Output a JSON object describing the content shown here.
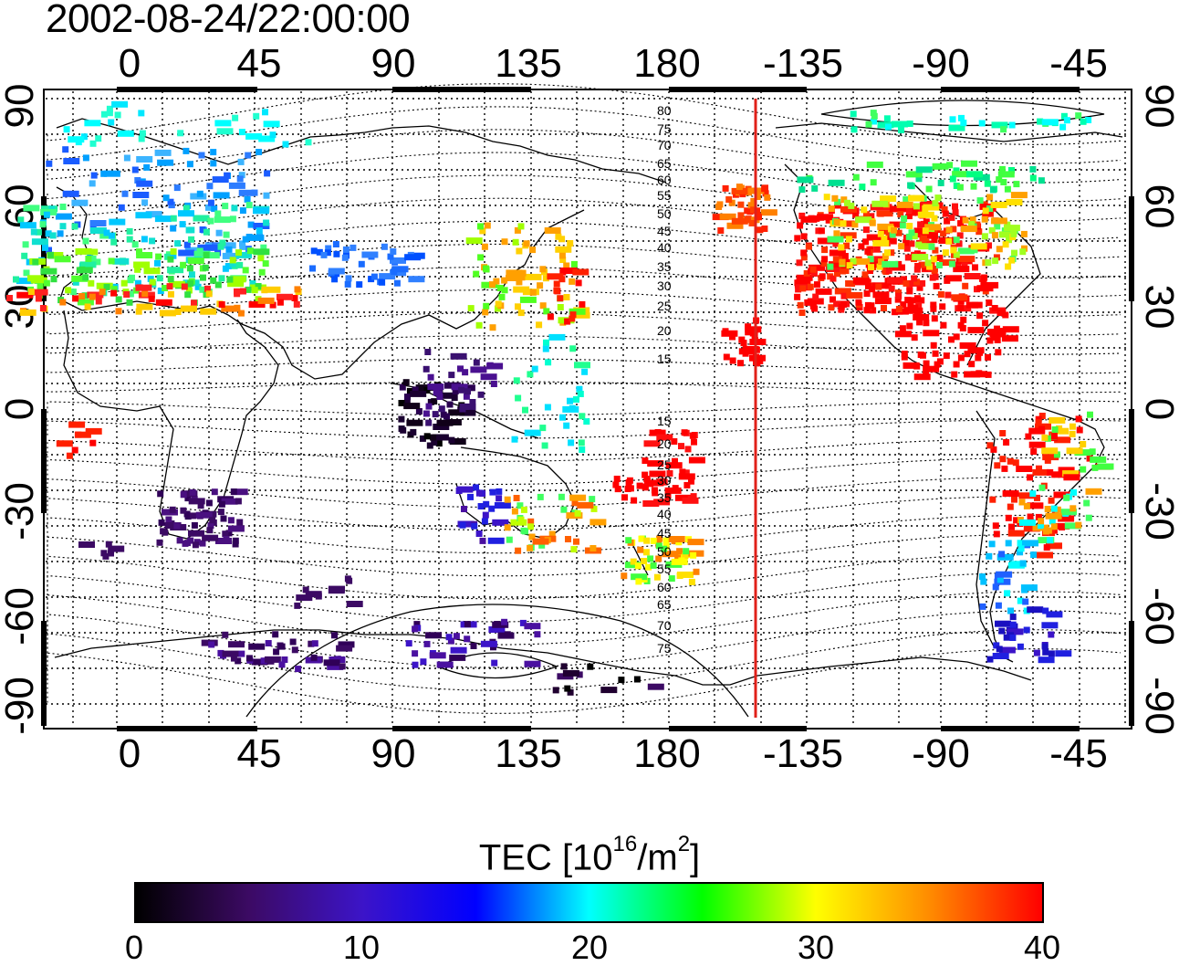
{
  "timestamp": "2002-08-24/22:00:00",
  "map": {
    "type": "TEC map",
    "top_ticks": [
      "0",
      "45",
      "90",
      "135",
      "180",
      "-135",
      "-90",
      "-45"
    ],
    "bottom_ticks": [
      "0",
      "45",
      "90",
      "135",
      "180",
      "-135",
      "-90",
      "-45"
    ],
    "left_ticks": [
      "90",
      "60",
      "30",
      "0",
      "-30",
      "-60",
      "-90"
    ],
    "right_ticks": [
      "90",
      "60",
      "30",
      "0",
      "-30",
      "-60",
      "-90"
    ],
    "contour_labels_north": [
      "80",
      "75",
      "70",
      "65",
      "60",
      "55",
      "50",
      "45",
      "40",
      "35",
      "30",
      "25",
      "20",
      "15"
    ],
    "contour_labels_south": [
      "15",
      "20",
      "25",
      "30",
      "35",
      "40",
      "45",
      "50",
      "55",
      "60",
      "65",
      "70",
      "75"
    ],
    "terminator_color": "#e0201a",
    "colormap": [
      "#000000",
      "#3c0a64",
      "#3c14c8",
      "#0000ff",
      "#00ffff",
      "#00ff00",
      "#ffff00",
      "#ff8c00",
      "#ff0000"
    ]
  },
  "colorbar": {
    "title": "TEC  [10",
    "title_exp": "16",
    "title_unit": "/m",
    "title_unit_exp": "2",
    "title_close": "]",
    "ticks": [
      "0",
      "10",
      "20",
      "30",
      "40"
    ],
    "range": [
      0,
      40
    ]
  }
}
